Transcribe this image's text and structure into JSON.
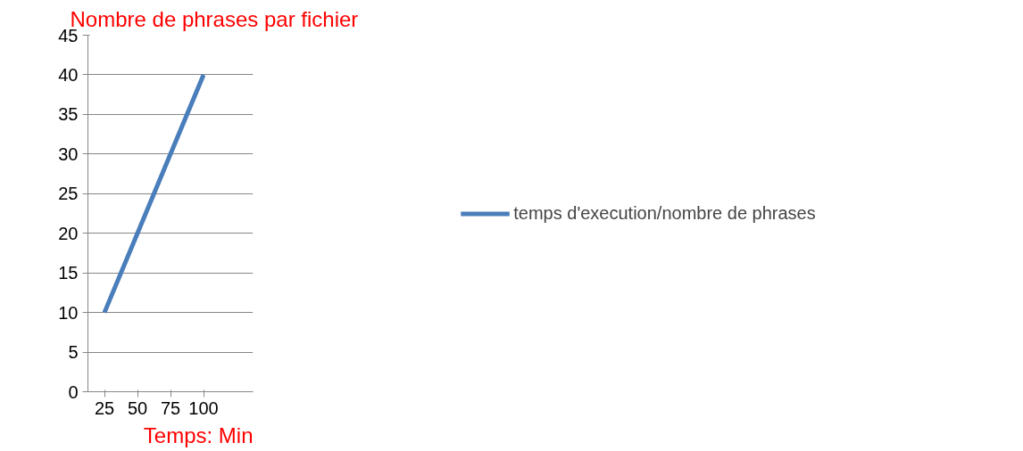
{
  "chart_data": {
    "type": "line",
    "ylabel": "Nombre de phrases par fichier",
    "xlabel": "Temps: Min",
    "categories": [
      "25",
      "50",
      "75",
      "100",
      null
    ],
    "series": [
      {
        "name": "temps d'execution/nombre de phrases",
        "color": "#4a7ebb",
        "values": [
          10,
          20,
          30,
          40,
          null
        ]
      }
    ],
    "ylim": [
      0,
      45
    ],
    "yticks": [
      0,
      5,
      10,
      15,
      20,
      25,
      30,
      35,
      40,
      45
    ],
    "grid": "y",
    "legend": "right",
    "marker": "none",
    "line_style": "solid"
  }
}
